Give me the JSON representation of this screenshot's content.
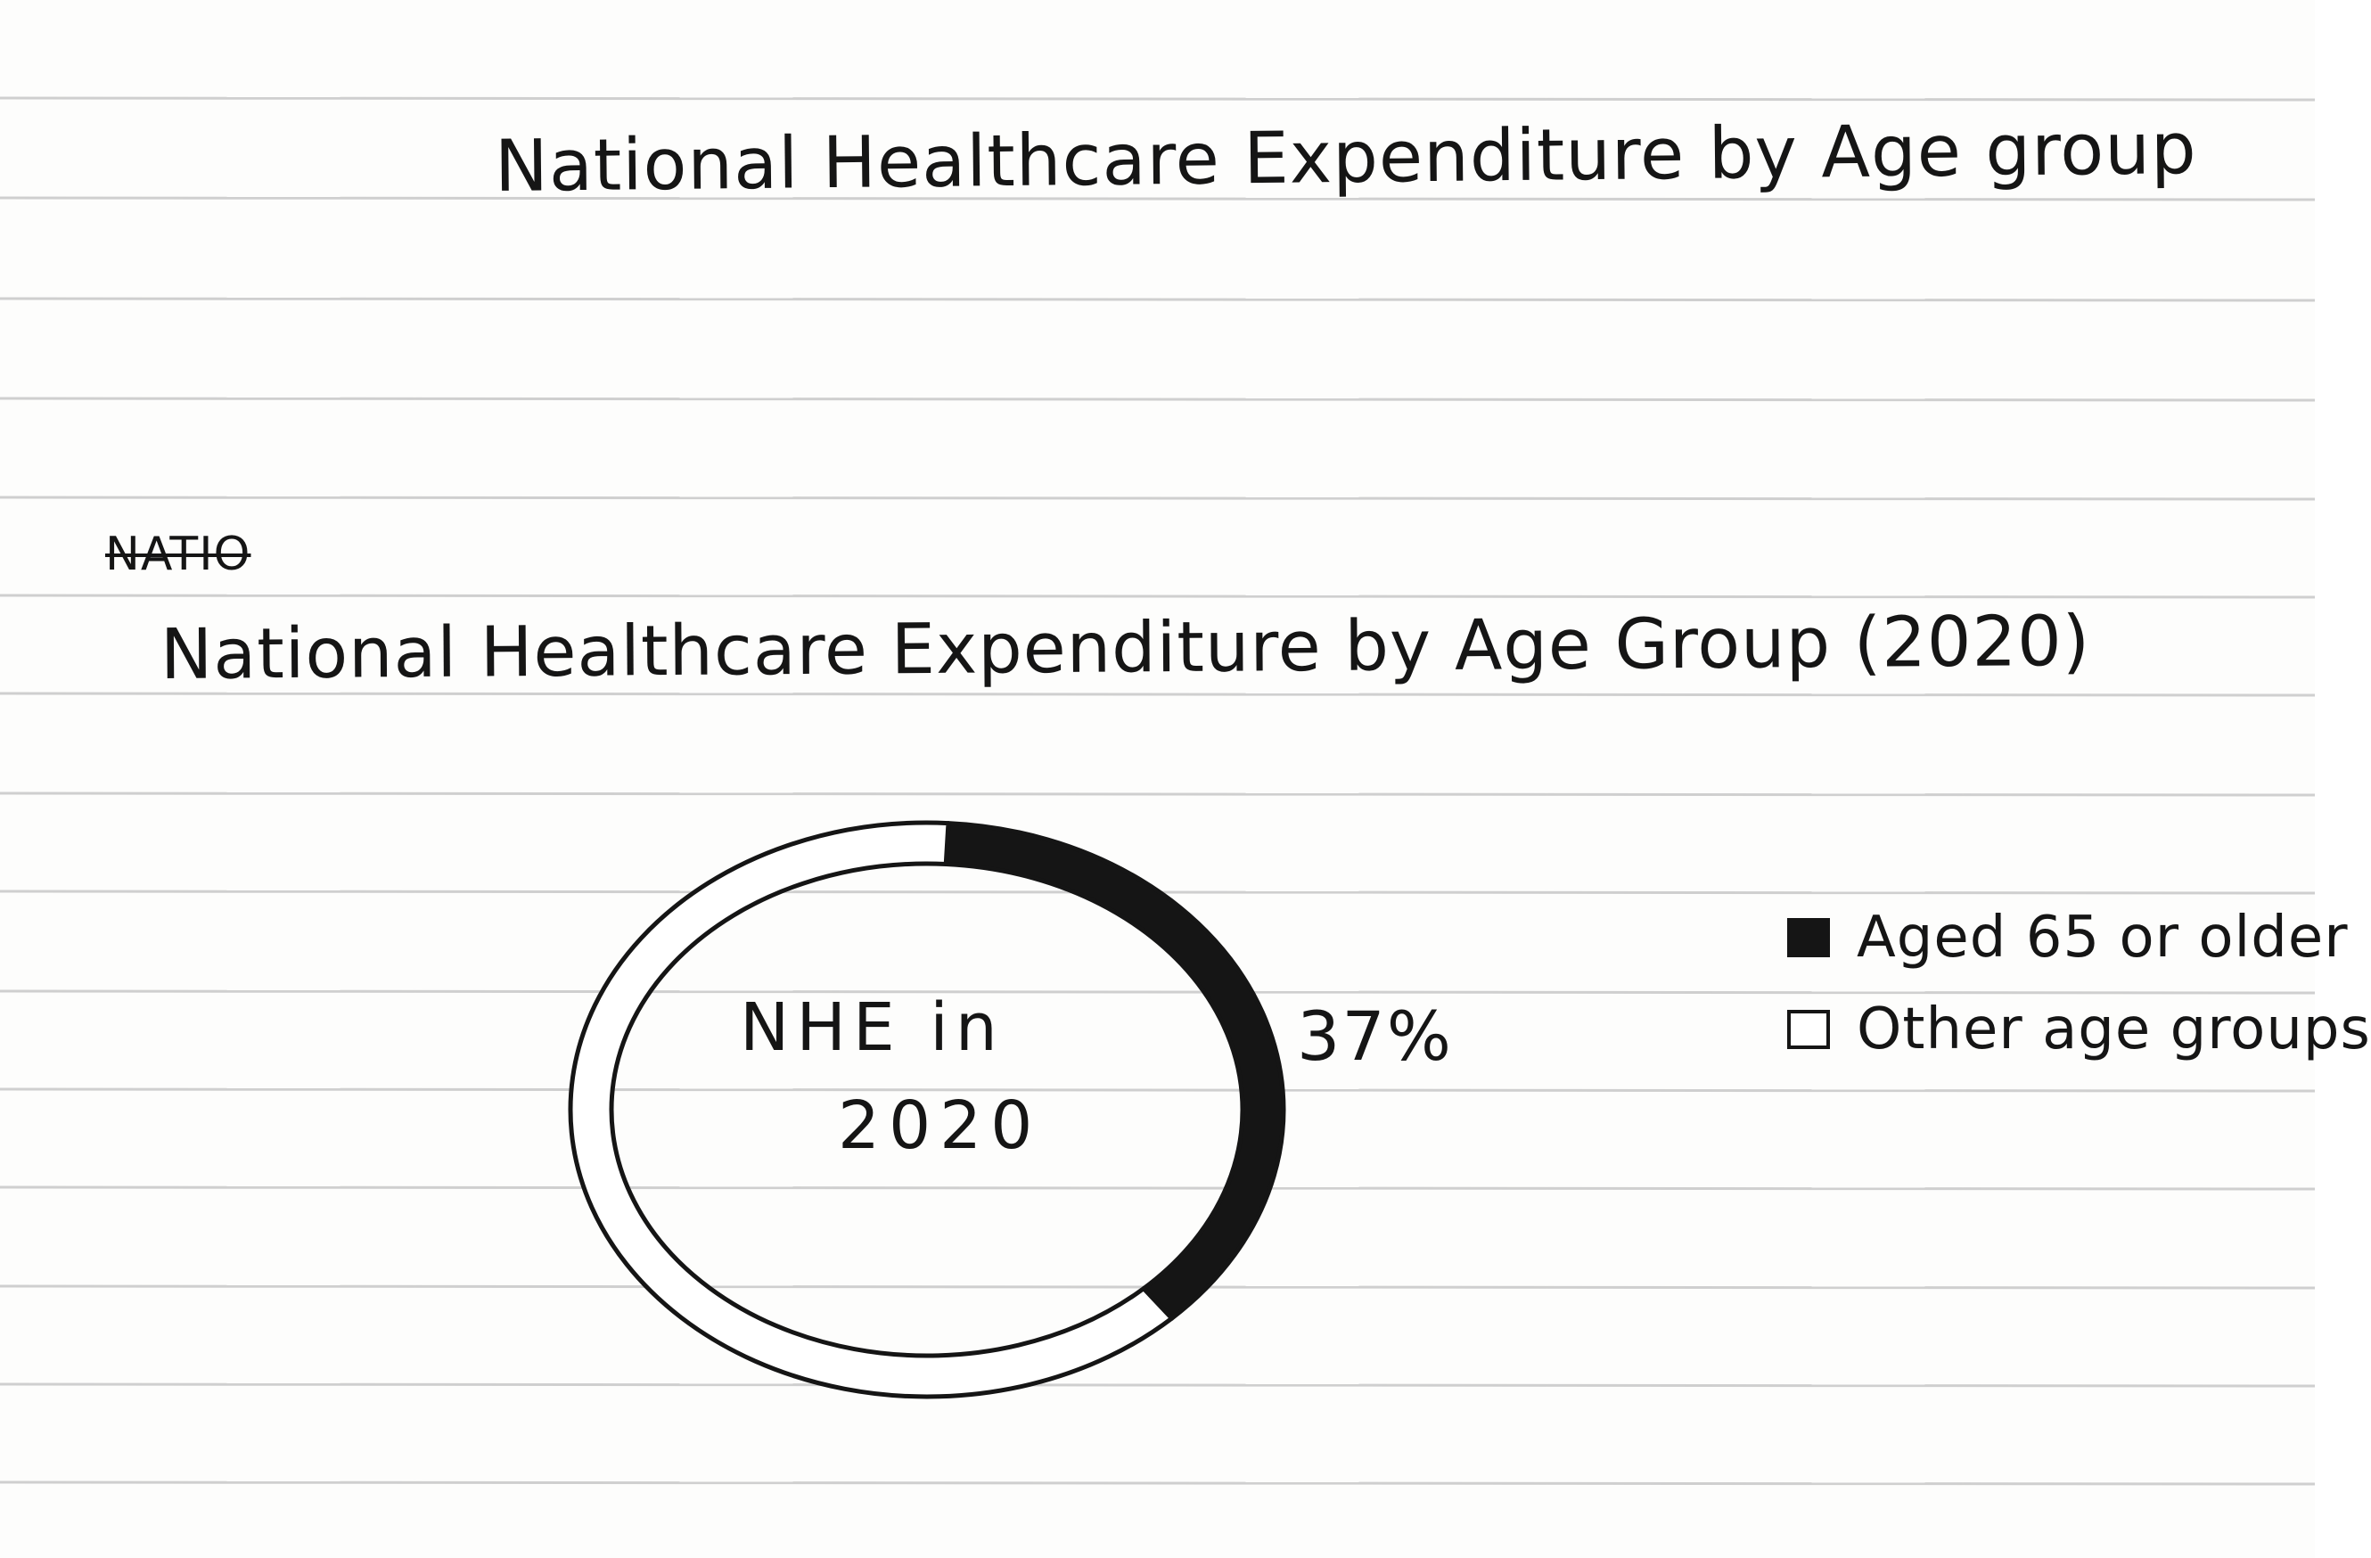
{
  "page": {
    "draft_title": "National Healthcare Expenditure by Age group",
    "struck_word": "NATIO"
  },
  "colors": {
    "ink": "#151515",
    "paper": "#fdfdfc",
    "ruled_line": "#cfcfcf"
  },
  "chart_data": {
    "type": "pie",
    "title": "National Healthcare Expenditure by Age Group (2020)",
    "center_label": [
      "NHE in",
      "2020"
    ],
    "slices": [
      {
        "label": "Aged 65 or older",
        "value": 37,
        "value_label": "37%",
        "color": "#151515"
      },
      {
        "label": "Other age groups",
        "value": 63,
        "color": "#ffffff"
      }
    ],
    "legend": {
      "placement": "right",
      "entries": [
        "Aged 65 or older",
        "Other age groups"
      ]
    }
  }
}
